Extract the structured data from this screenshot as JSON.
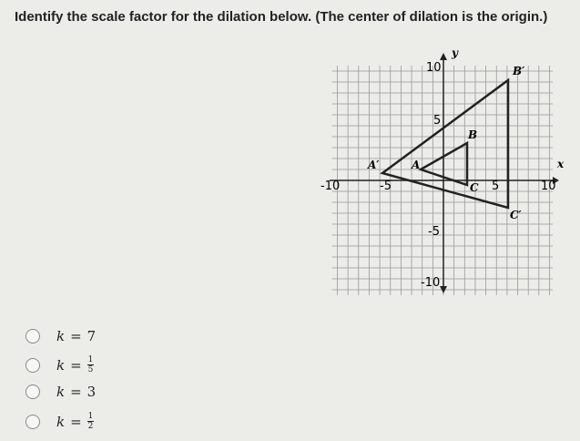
{
  "question": "Identify the scale factor for the dilation below. (The center of dilation is the origin.)",
  "graph": {
    "x_axis_label": "x",
    "y_axis_label": "y",
    "tick_labels": {
      "y_top": "10",
      "y_mid": "5",
      "y_low": "-5",
      "y_bottom": "-10",
      "x_left": "-10",
      "x_mid_left": "-5",
      "x_mid_right": "5",
      "x_right": "10"
    },
    "points": {
      "A": "A",
      "B": "B",
      "C": "C",
      "A_prime": "A′",
      "B_prime": "B′",
      "C_prime": "C′"
    }
  },
  "choices": [
    {
      "variable": "k",
      "equals": "=",
      "value": "7"
    },
    {
      "variable": "k",
      "equals": "=",
      "numerator": "1",
      "denominator": "5"
    },
    {
      "variable": "k",
      "equals": "=",
      "value": "3"
    },
    {
      "variable": "k",
      "equals": "=",
      "numerator": "1",
      "denominator": "2"
    }
  ]
}
